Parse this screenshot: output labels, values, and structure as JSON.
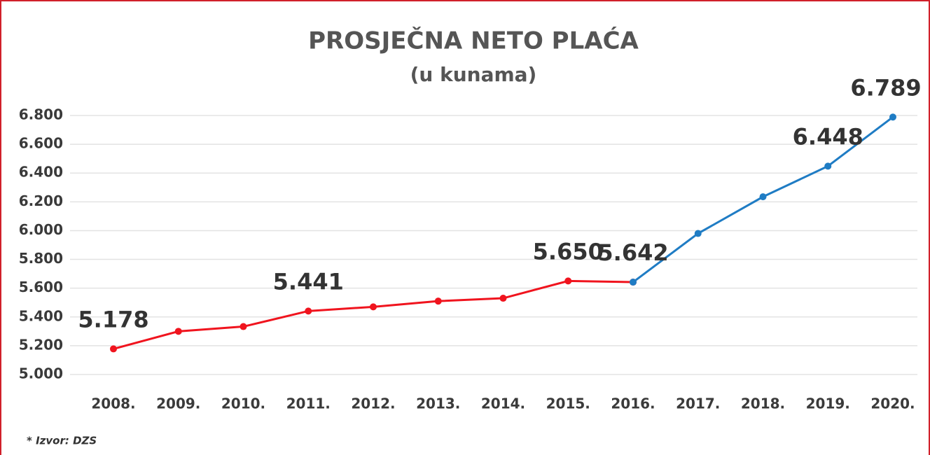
{
  "chart_data": {
    "type": "line",
    "title": "PROSJEČNA NETO PLAĆA",
    "subtitle": "(u kunama)",
    "footnote": "* Izvor: DZS",
    "categories": [
      "2008.",
      "2009.",
      "2010.",
      "2011.",
      "2012.",
      "2013.",
      "2014.",
      "2015.",
      "2016.",
      "2017.",
      "2018.",
      "2019.",
      "2020."
    ],
    "series": [
      {
        "color": "#f0141e",
        "values": [
          5178,
          5300,
          5333,
          5441,
          5470,
          5510,
          5530,
          5650,
          5642,
          null,
          null,
          null,
          null
        ],
        "value_labels": [
          "5.178",
          null,
          null,
          "5.441",
          null,
          null,
          null,
          "5.650",
          null,
          null,
          null,
          null,
          null
        ]
      },
      {
        "color": "#1f7cc4",
        "values": [
          null,
          null,
          null,
          null,
          null,
          null,
          null,
          null,
          5642,
          5980,
          6235,
          6448,
          6789
        ],
        "value_labels": [
          null,
          null,
          null,
          null,
          null,
          null,
          null,
          null,
          "5.642",
          null,
          null,
          "6.448",
          "6.789"
        ]
      }
    ],
    "ylim": [
      5000,
      6800
    ],
    "yticks": [
      {
        "value": 5000,
        "label": "5.000"
      },
      {
        "value": 5200,
        "label": "5.200"
      },
      {
        "value": 5400,
        "label": "5.400"
      },
      {
        "value": 5600,
        "label": "5.600"
      },
      {
        "value": 5800,
        "label": "5.800"
      },
      {
        "value": 6000,
        "label": "6.000"
      },
      {
        "value": 6200,
        "label": "6.200"
      },
      {
        "value": 6400,
        "label": "6.400"
      },
      {
        "value": 6600,
        "label": "6.600"
      },
      {
        "value": 6800,
        "label": "6.800"
      }
    ],
    "grid": true
  }
}
